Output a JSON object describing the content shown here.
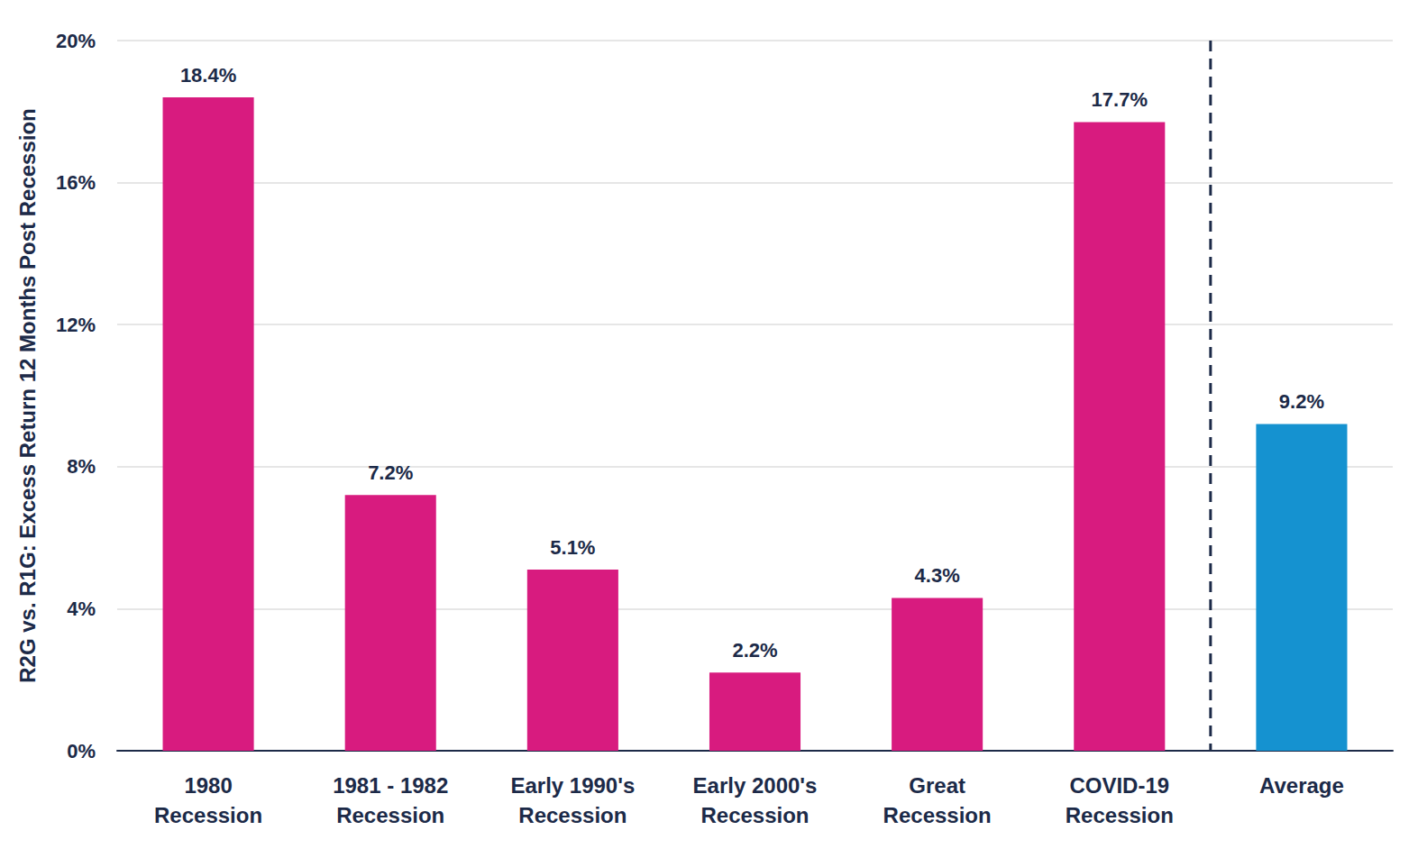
{
  "chart_data": {
    "type": "bar",
    "y_label": "R2G vs. R1G: Excess Return 12 Months Post Recession",
    "categories": [
      "1980\nRecession",
      "1981 - 1982\nRecession",
      "Early 1990's\nRecession",
      "Early 2000's\nRecession",
      "Great\nRecession",
      "COVID-19\nRecession",
      "Average"
    ],
    "values": [
      18.4,
      7.2,
      5.1,
      2.2,
      4.3,
      17.7,
      9.2
    ],
    "value_labels": [
      "18.4%",
      "7.2%",
      "5.1%",
      "2.2%",
      "4.3%",
      "17.7%",
      "9.2%"
    ],
    "colors": [
      "#d81b7f",
      "#d81b7f",
      "#d81b7f",
      "#d81b7f",
      "#d81b7f",
      "#d81b7f",
      "#1592d0"
    ],
    "ylim": [
      0,
      20
    ],
    "yticks": [
      {
        "value": 0,
        "label": "0%"
      },
      {
        "value": 4,
        "label": "4%"
      },
      {
        "value": 8,
        "label": "8%"
      },
      {
        "value": 12,
        "label": "12%"
      },
      {
        "value": 16,
        "label": "16%"
      },
      {
        "value": 20,
        "label": "20%"
      }
    ],
    "grid": true,
    "data_labels": true
  }
}
